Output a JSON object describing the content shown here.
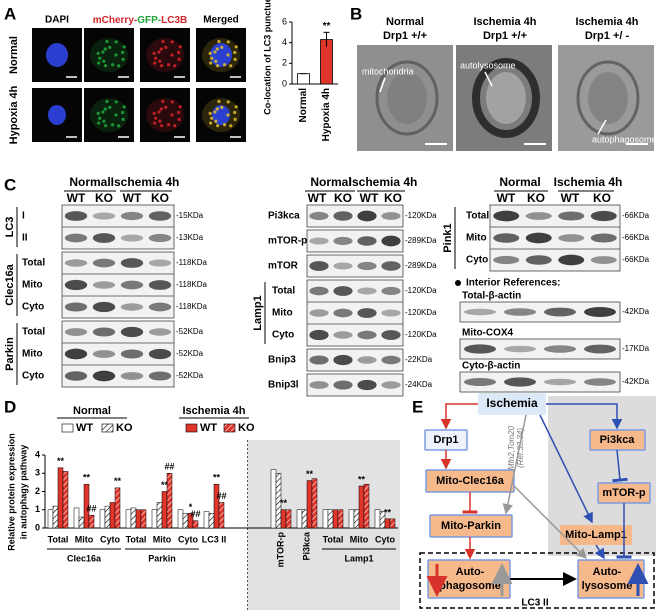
{
  "panel_labels": {
    "a": "A",
    "b": "B",
    "c": "C",
    "d": "D",
    "e": "E"
  },
  "panel_a": {
    "channels": {
      "dapi": "DAPI",
      "merged_channels": [
        "mCherry-",
        "GFP-",
        "LC3B"
      ],
      "merged": "Merged"
    },
    "rows": [
      "Normal",
      "Hypoxia 4h"
    ]
  },
  "panel_b": {
    "columns": [
      [
        "Normal",
        "Drp1 +/+"
      ],
      [
        "Ischemia 4h",
        "Drp1 +/+"
      ],
      [
        "Ischemia 4h",
        "Drp1 +/ -"
      ]
    ],
    "labels": [
      "mitochondria",
      "autolysosome",
      "autophagosome"
    ]
  },
  "panel_c": {
    "conditions": [
      "Normal",
      "Ischemia 4h"
    ],
    "genotypes": [
      "WT",
      "KO",
      "WT",
      "KO"
    ],
    "groups": [
      {
        "sections": [
          {
            "name": "LC3",
            "rows": [
              {
                "label": "I",
                "kda": "-15KDa"
              },
              {
                "label": "II",
                "kda": "-13KDa"
              }
            ]
          },
          {
            "name": "Clec16a",
            "rows": [
              {
                "label": "Total",
                "kda": "-118KDa"
              },
              {
                "label": "Mito",
                "kda": "-118KDa"
              },
              {
                "label": "Cyto",
                "kda": "-118KDa"
              }
            ]
          },
          {
            "name": "Parkin",
            "rows": [
              {
                "label": "Total",
                "kda": "-52KDa"
              },
              {
                "label": "Mito",
                "kda": "-52KDa"
              },
              {
                "label": "Cyto",
                "kda": "-52KDa"
              }
            ]
          }
        ]
      },
      {
        "sections": [
          {
            "name": "Pi3kca",
            "rows": [
              {
                "kda": "-120KDa"
              }
            ]
          },
          {
            "name": "mTOR-p",
            "rows": [
              {
                "kda": "-289KDa"
              }
            ]
          },
          {
            "name": "mTOR",
            "rows": [
              {
                "kda": "-289KDa"
              }
            ]
          },
          {
            "name": "Lamp1",
            "rows": [
              {
                "label": "Total",
                "kda": "-120KDa"
              },
              {
                "label": "Mito",
                "kda": "-120KDa"
              },
              {
                "label": "Cyto",
                "kda": "-120KDa"
              }
            ]
          },
          {
            "name": "Bnip3",
            "rows": [
              {
                "kda": "-22KDa"
              }
            ]
          },
          {
            "name": "Bnip3l",
            "rows": [
              {
                "kda": "-24KDa"
              }
            ]
          }
        ]
      },
      {
        "sections": [
          {
            "name": "Pink1",
            "rows": [
              {
                "label": "Total",
                "kda": "-66KDa"
              },
              {
                "label": "Mito",
                "kda": "-66KDa"
              },
              {
                "label": "Cyto",
                "kda": "-66KDa"
              }
            ]
          }
        ]
      }
    ],
    "references_title": "Interior References:",
    "references": [
      {
        "name": "Total-β-actin",
        "kda": "-42KDa"
      },
      {
        "name": "Mito-COX4",
        "kda": "-17KDa"
      },
      {
        "name": "Cyto-β-actin",
        "kda": "-42KDa"
      }
    ]
  },
  "chart_data": [
    {
      "type": "bar",
      "categories": [
        "Normal",
        "Hypoxia 4h"
      ],
      "values": [
        1,
        4.3
      ],
      "errors": [
        0,
        0.7
      ],
      "colors": [
        "#ffffff",
        "#e0352b"
      ],
      "ylim": [
        0,
        6
      ],
      "yticks": [
        0,
        2,
        4,
        6
      ],
      "y_label": "Co-location of LC3 punctue",
      "annotations": [
        {
          "text": "**",
          "category": 1
        }
      ]
    },
    {
      "type": "grouped_bar",
      "categories": [
        "Total",
        "Mito",
        "Cyto",
        "Total",
        "Mito",
        "Cyto",
        "LC3 II",
        "mTOR-p",
        "Pi3kca",
        "Total",
        "Mito",
        "Cyto"
      ],
      "category_groups": [
        {
          "name": "Clec16a",
          "from": 0,
          "to": 2
        },
        {
          "name": "Parkin",
          "from": 3,
          "to": 5
        },
        {
          "name": "Lamp1",
          "from": 9,
          "to": 11
        }
      ],
      "shaded_from": 7,
      "series_groups": [
        {
          "name": "Normal",
          "series": [
            {
              "name": "WT",
              "color": "#ffffff",
              "hatch": false,
              "values": [
                1.0,
                1.1,
                1.0,
                1.0,
                1.0,
                1.0,
                0.9,
                3.2,
                1.0,
                1.0,
                1.0,
                1.0
              ]
            },
            {
              "name": "KO",
              "color": "#ffffff",
              "hatch": true,
              "values": [
                1.2,
                0.6,
                1.2,
                1.1,
                1.4,
                0.8,
                0.8,
                3.0,
                1.0,
                1.0,
                1.0,
                0.9
              ]
            }
          ]
        },
        {
          "name": "Ischemia 4h",
          "series": [
            {
              "name": "WT",
              "color": "#e0352b",
              "hatch": false,
              "values": [
                3.3,
                2.4,
                1.4,
                1.0,
                2.0,
                0.8,
                2.4,
                1.0,
                2.6,
                1.0,
                2.3,
                0.5
              ]
            },
            {
              "name": "KO",
              "color": "#e0352b",
              "hatch": true,
              "values": [
                3.1,
                0.7,
                2.2,
                1.0,
                3.0,
                0.4,
                1.4,
                1.0,
                2.7,
                1.0,
                2.4,
                0.5
              ]
            }
          ]
        }
      ],
      "ylim": [
        0,
        4
      ],
      "yticks": [
        0,
        1,
        2,
        3,
        4
      ],
      "y_label": [
        "Relative protein expression",
        "in autophagy pathway"
      ],
      "annotations": [
        {
          "text": "**",
          "category": 0,
          "group": 1,
          "series": 0
        },
        {
          "text": "**",
          "category": 1,
          "group": 1,
          "series": 0
        },
        {
          "text": "##",
          "category": 1,
          "group": 1,
          "series": 1
        },
        {
          "text": "**",
          "category": 2,
          "group": 1,
          "series": 1
        },
        {
          "text": "**",
          "category": 4,
          "group": 1,
          "series": 0
        },
        {
          "text": "##",
          "category": 4,
          "group": 1,
          "series": 1
        },
        {
          "text": "*",
          "category": 5,
          "group": 1,
          "series": 0
        },
        {
          "text": "##",
          "category": 5,
          "group": 1,
          "series": 1
        },
        {
          "text": "**",
          "category": 6,
          "group": 1,
          "series": 0
        },
        {
          "text": "##",
          "category": 6,
          "group": 1,
          "series": 1
        },
        {
          "text": "**",
          "category": 7,
          "group": 1,
          "series": 0
        },
        {
          "text": "**",
          "category": 8,
          "group": 1,
          "series": 0
        },
        {
          "text": "**",
          "category": 10,
          "group": 1,
          "series": 0
        },
        {
          "text": "**",
          "category": 11,
          "group": 1,
          "series": 0
        }
      ]
    }
  ],
  "panel_e": {
    "ischemia": "Ischemia",
    "drp1": "Drp1",
    "pi3kca": "Pi3kca",
    "clec16a": "Mito-Clec16a",
    "mtor": "mTOR-p",
    "lamp1": "Mito-Lamp1",
    "parkin": "Mito-Parkin",
    "autophagosome": [
      "Auto-",
      "phagosome"
    ],
    "autolysosome": [
      "Auto-",
      "lysosome"
    ],
    "lc3": "LC3 II",
    "ref": [
      "Mfn2,Tom20",
      "(Ref.33,34)"
    ]
  }
}
